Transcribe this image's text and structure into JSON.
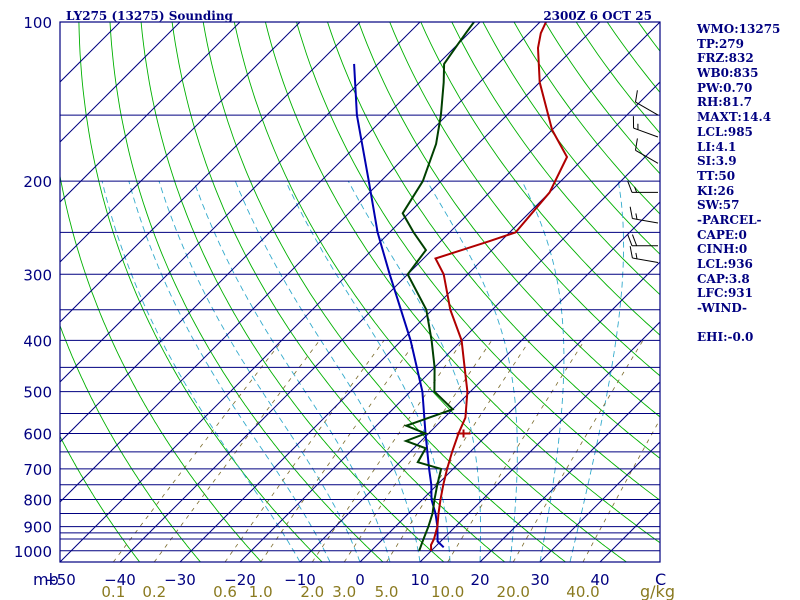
{
  "chart_data": {
    "type": "skew-t log-p sounding",
    "title_left": "LY275 (13275) Sounding",
    "title_right": "2300Z  6 OCT 25",
    "pressure_unit": "mb",
    "mixing_ratio_unit": "g/kg",
    "temperature_unit": "C",
    "pressure_range": [
      1050,
      100
    ],
    "temperature_range_at_surface": [
      -50,
      50
    ],
    "pressure_ticks": [
      100,
      200,
      300,
      400,
      500,
      600,
      700,
      800,
      900,
      1000
    ],
    "temperature_ticks": [
      -50,
      -40,
      -30,
      -20,
      -10,
      0,
      10,
      20,
      30,
      40
    ],
    "mixing_ratio_ticks": [
      "0.1",
      "0.2",
      "0.6",
      "1.0",
      "2.0",
      "3.0",
      "5.0",
      "10.0",
      "20.0",
      "40.0"
    ],
    "mixing_ratio_values": [
      0.1,
      0.2,
      0.6,
      1.0,
      2.0,
      3.0,
      5.0,
      10.0,
      20.0,
      40.0
    ],
    "isobar_levels": [
      100,
      150,
      200,
      250,
      300,
      350,
      400,
      450,
      500,
      550,
      600,
      650,
      700,
      750,
      800,
      850,
      900,
      925,
      950,
      1000
    ],
    "isotherm_range": [
      -150,
      50
    ],
    "isotherm_step": 10,
    "dry_adiabat_theta": [
      -40,
      -30,
      -20,
      -10,
      0,
      10,
      20,
      30,
      40,
      50,
      60,
      70,
      80,
      90,
      100,
      110,
      120,
      130,
      140,
      150,
      160,
      170,
      180
    ],
    "moist_adiabat_start": [
      -10,
      -5,
      0,
      5,
      10,
      15,
      20,
      25,
      30,
      35
    ],
    "temperature_profile": [
      {
        "p": 1000,
        "t": 10.0
      },
      {
        "p": 975,
        "t": 9.0
      },
      {
        "p": 950,
        "t": 8.5
      },
      {
        "p": 900,
        "t": 7.0
      },
      {
        "p": 850,
        "t": 5.0
      },
      {
        "p": 800,
        "t": 3.0
      },
      {
        "p": 750,
        "t": 1.0
      },
      {
        "p": 700,
        "t": -1.0
      },
      {
        "p": 650,
        "t": -3.0
      },
      {
        "p": 600,
        "t": -5.0
      },
      {
        "p": 560,
        "t": -6.5
      },
      {
        "p": 500,
        "t": -10.5
      },
      {
        "p": 450,
        "t": -15.0
      },
      {
        "p": 400,
        "t": -20.0
      },
      {
        "p": 350,
        "t": -27.0
      },
      {
        "p": 300,
        "t": -34.0
      },
      {
        "p": 280,
        "t": -38.0
      },
      {
        "p": 260,
        "t": -32.0
      },
      {
        "p": 250,
        "t": -29.0
      },
      {
        "p": 210,
        "t": -30.0
      },
      {
        "p": 180,
        "t": -33.0
      },
      {
        "p": 160,
        "t": -40.0
      },
      {
        "p": 130,
        "t": -50.0
      },
      {
        "p": 112,
        "t": -56.0
      },
      {
        "p": 105,
        "t": -58.0
      },
      {
        "p": 100,
        "t": -59.0
      }
    ],
    "dewpoint_profile": [
      {
        "p": 1000,
        "t": 8.0
      },
      {
        "p": 960,
        "t": 7.0
      },
      {
        "p": 900,
        "t": 5.5
      },
      {
        "p": 850,
        "t": 4.0
      },
      {
        "p": 800,
        "t": 2.0
      },
      {
        "p": 750,
        "t": 0.0
      },
      {
        "p": 700,
        "t": -2.0
      },
      {
        "p": 680,
        "t": -7.0
      },
      {
        "p": 640,
        "t": -8.0
      },
      {
        "p": 620,
        "t": -12.5
      },
      {
        "p": 600,
        "t": -10.5
      },
      {
        "p": 580,
        "t": -15.0
      },
      {
        "p": 540,
        "t": -10.0
      },
      {
        "p": 500,
        "t": -16.0
      },
      {
        "p": 450,
        "t": -20.0
      },
      {
        "p": 400,
        "t": -25.0
      },
      {
        "p": 350,
        "t": -31.0
      },
      {
        "p": 300,
        "t": -40.0
      },
      {
        "p": 270,
        "t": -41.0
      },
      {
        "p": 250,
        "t": -46.0
      },
      {
        "p": 230,
        "t": -51.0
      },
      {
        "p": 200,
        "t": -53.0
      },
      {
        "p": 170,
        "t": -57.0
      },
      {
        "p": 150,
        "t": -61.0
      },
      {
        "p": 130,
        "t": -66.0
      },
      {
        "p": 120,
        "t": -69.0
      },
      {
        "p": 110,
        "t": -70.0
      },
      {
        "p": 105,
        "t": -70.5
      },
      {
        "p": 100,
        "t": -71.0
      }
    ],
    "parcel_profile": [
      {
        "p": 985,
        "t": 11.5
      },
      {
        "p": 960,
        "t": 9.5
      },
      {
        "p": 900,
        "t": 7.0
      },
      {
        "p": 850,
        "t": 4.5
      },
      {
        "p": 800,
        "t": 1.5
      },
      {
        "p": 750,
        "t": -1.0
      },
      {
        "p": 700,
        "t": -4.0
      },
      {
        "p": 600,
        "t": -10.5
      },
      {
        "p": 500,
        "t": -18.0
      },
      {
        "p": 400,
        "t": -28.5
      },
      {
        "p": 300,
        "t": -43.0
      },
      {
        "p": 250,
        "t": -52.0
      },
      {
        "p": 200,
        "t": -62.0
      },
      {
        "p": 150,
        "t": -75.0
      },
      {
        "p": 120,
        "t": -84.0
      }
    ],
    "lcl_marker_pressure": 600,
    "wind_barbs": [
      {
        "p": 150,
        "dir": 300,
        "kt": 10
      },
      {
        "p": 165,
        "dir": 290,
        "kt": 15
      },
      {
        "p": 185,
        "dir": 300,
        "kt": 10
      },
      {
        "p": 210,
        "dir": 270,
        "kt": 15
      },
      {
        "p": 240,
        "dir": 280,
        "kt": 15
      },
      {
        "p": 265,
        "dir": 270,
        "kt": 20
      },
      {
        "p": 285,
        "dir": 280,
        "kt": 15
      }
    ]
  },
  "indices": [
    "WMO:13275",
    "TP:279",
    "FRZ:832",
    "WB0:835",
    "PW:0.70",
    "RH:81.7",
    "MAXT:14.4",
    "LCL:985",
    "LI:4.1",
    "SI:3.9",
    "TT:50",
    "KI:26",
    "SW:57",
    "-PARCEL-",
    "CAPE:0",
    "CINH:0",
    "LCL:936",
    "CAP:3.8",
    "LFC:931",
    "-WIND-",
    "",
    "EHI:-0.0"
  ],
  "colors": {
    "frame": "#000080",
    "isobar": "#000080",
    "isotherm": "#000080",
    "dry_adiabat": "#00b000",
    "moist_adiabat": "#33aacc",
    "mixing_ratio": "#7a6a2a",
    "temperature": "#b00000",
    "dewpoint": "#004000",
    "parcel": "#0000b0",
    "mixing_ratio_label": "#8a7a20",
    "pressure_label": "#000080",
    "title": "#000080",
    "barb": "#000000"
  }
}
